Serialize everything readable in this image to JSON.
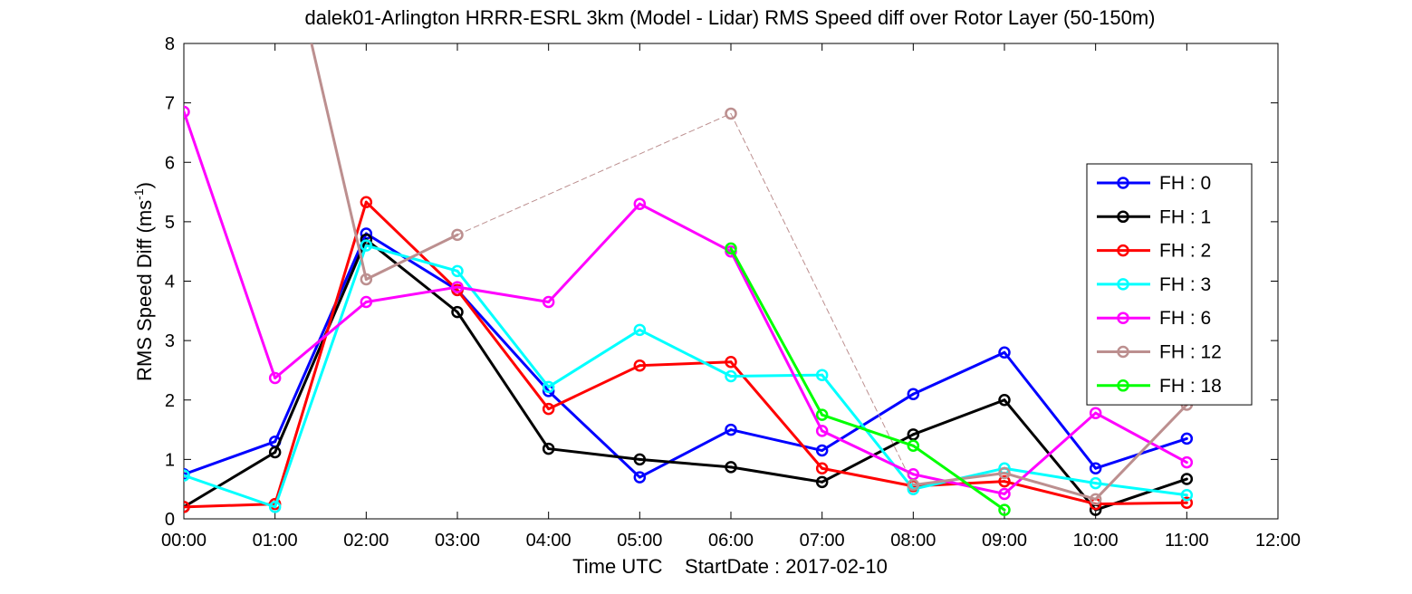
{
  "chart_data": {
    "type": "line",
    "title": "dalek01-Arlington HRRR-ESRL 3km (Model - Lidar) RMS Speed diff over Rotor Layer (50-150m)",
    "xlabel": "Time UTC    StartDate : 2017-02-10",
    "ylabel": "RMS Speed Diff (ms",
    "ylabel_sup": "-1",
    "ylabel_close": ")",
    "xlim": [
      0,
      12
    ],
    "ylim": [
      0,
      8
    ],
    "x_ticks": [
      0,
      1,
      2,
      3,
      4,
      5,
      6,
      7,
      8,
      9,
      10,
      11,
      12
    ],
    "x_tick_labels": [
      "00:00",
      "01:00",
      "02:00",
      "03:00",
      "04:00",
      "05:00",
      "06:00",
      "07:00",
      "08:00",
      "09:00",
      "10:00",
      "11:00",
      "12:00"
    ],
    "y_ticks": [
      0,
      1,
      2,
      3,
      4,
      5,
      6,
      7,
      8
    ],
    "y_tick_labels": [
      "0",
      "1",
      "2",
      "3",
      "4",
      "5",
      "6",
      "7",
      "8"
    ],
    "grid": false,
    "legend_position": "right",
    "series": [
      {
        "name": "FH : 0",
        "color": "#0000ff",
        "x": [
          0,
          1,
          2,
          3,
          4,
          5,
          6,
          7,
          8,
          9,
          10,
          11
        ],
        "y": [
          0.75,
          1.3,
          4.8,
          3.85,
          2.15,
          0.7,
          1.5,
          1.15,
          2.1,
          2.8,
          0.85,
          1.35
        ]
      },
      {
        "name": "FH : 1",
        "color": "#000000",
        "x": [
          0,
          1,
          2,
          3,
          4,
          5,
          6,
          7,
          8,
          9,
          10,
          11
        ],
        "y": [
          0.2,
          1.12,
          4.7,
          3.48,
          1.18,
          1.0,
          0.87,
          0.62,
          1.42,
          2.0,
          0.15,
          0.67
        ]
      },
      {
        "name": "FH : 2",
        "color": "#ff0000",
        "x": [
          0,
          1,
          2,
          3,
          4,
          5,
          6,
          7,
          8,
          9,
          10,
          11
        ],
        "y": [
          0.2,
          0.25,
          5.33,
          3.85,
          1.85,
          2.58,
          2.64,
          0.85,
          0.55,
          0.63,
          0.25,
          0.27
        ]
      },
      {
        "name": "FH : 3",
        "color": "#00ffff",
        "x": [
          0,
          1,
          2,
          3,
          4,
          5,
          6,
          7,
          8,
          9,
          10,
          11
        ],
        "y": [
          0.73,
          0.2,
          4.6,
          4.17,
          2.22,
          3.18,
          2.4,
          2.42,
          0.5,
          0.85,
          0.6,
          0.4
        ]
      },
      {
        "name": "FH : 6",
        "color": "#ff00ff",
        "x": [
          0,
          1,
          2,
          3,
          4,
          5,
          6,
          7,
          8,
          9,
          10,
          11
        ],
        "y": [
          6.85,
          2.37,
          3.65,
          3.9,
          3.65,
          5.3,
          4.5,
          1.48,
          0.75,
          0.42,
          1.78,
          0.95
        ]
      },
      {
        "name": "FH : 12",
        "color": "#bc8f8f",
        "x": [
          1.4,
          2,
          3,
          6,
          8,
          9,
          10,
          11
        ],
        "y": [
          8.0,
          4.03,
          4.78,
          6.82,
          0.57,
          0.77,
          0.33,
          1.92
        ],
        "segment_styles": [
          "solid",
          "solid",
          "dashed",
          "dashed",
          "solid",
          "solid",
          "solid"
        ]
      },
      {
        "name": "FH : 18",
        "color": "#00ff00",
        "x": [
          6,
          7,
          8,
          9
        ],
        "y": [
          4.55,
          1.75,
          1.23,
          0.15
        ]
      }
    ]
  }
}
